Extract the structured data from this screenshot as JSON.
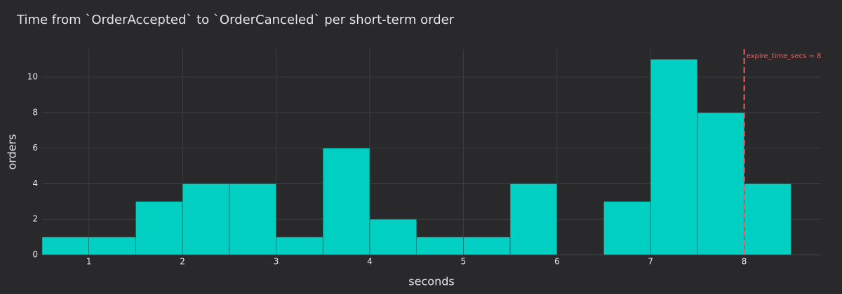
{
  "chart_data": {
    "type": "histogram",
    "title": "Time from `OrderAccepted` to `OrderCanceled` per short-term order",
    "x_label": "seconds",
    "y_label": "orders",
    "bins": [
      0.5,
      1,
      1.5,
      2,
      2.5,
      3,
      3.5,
      4,
      4.5,
      5,
      5.5,
      6,
      6.5,
      7,
      7.5,
      8,
      8.5
    ],
    "counts": [
      1,
      1,
      3,
      4,
      4,
      1,
      6,
      2,
      1,
      1,
      4,
      0,
      3,
      11,
      8,
      4
    ],
    "color": "#00cfc1",
    "xlim": [
      0.5,
      8.82
    ],
    "xticks": [
      1,
      2,
      3,
      4,
      5,
      6,
      7,
      8
    ],
    "ylim": [
      0,
      11.58
    ],
    "yticks": [
      0,
      2,
      4,
      6,
      8,
      10
    ],
    "grid": true,
    "vline": {
      "x": 8,
      "label": "expire_time_secs = 8",
      "color": "#e06666"
    }
  }
}
